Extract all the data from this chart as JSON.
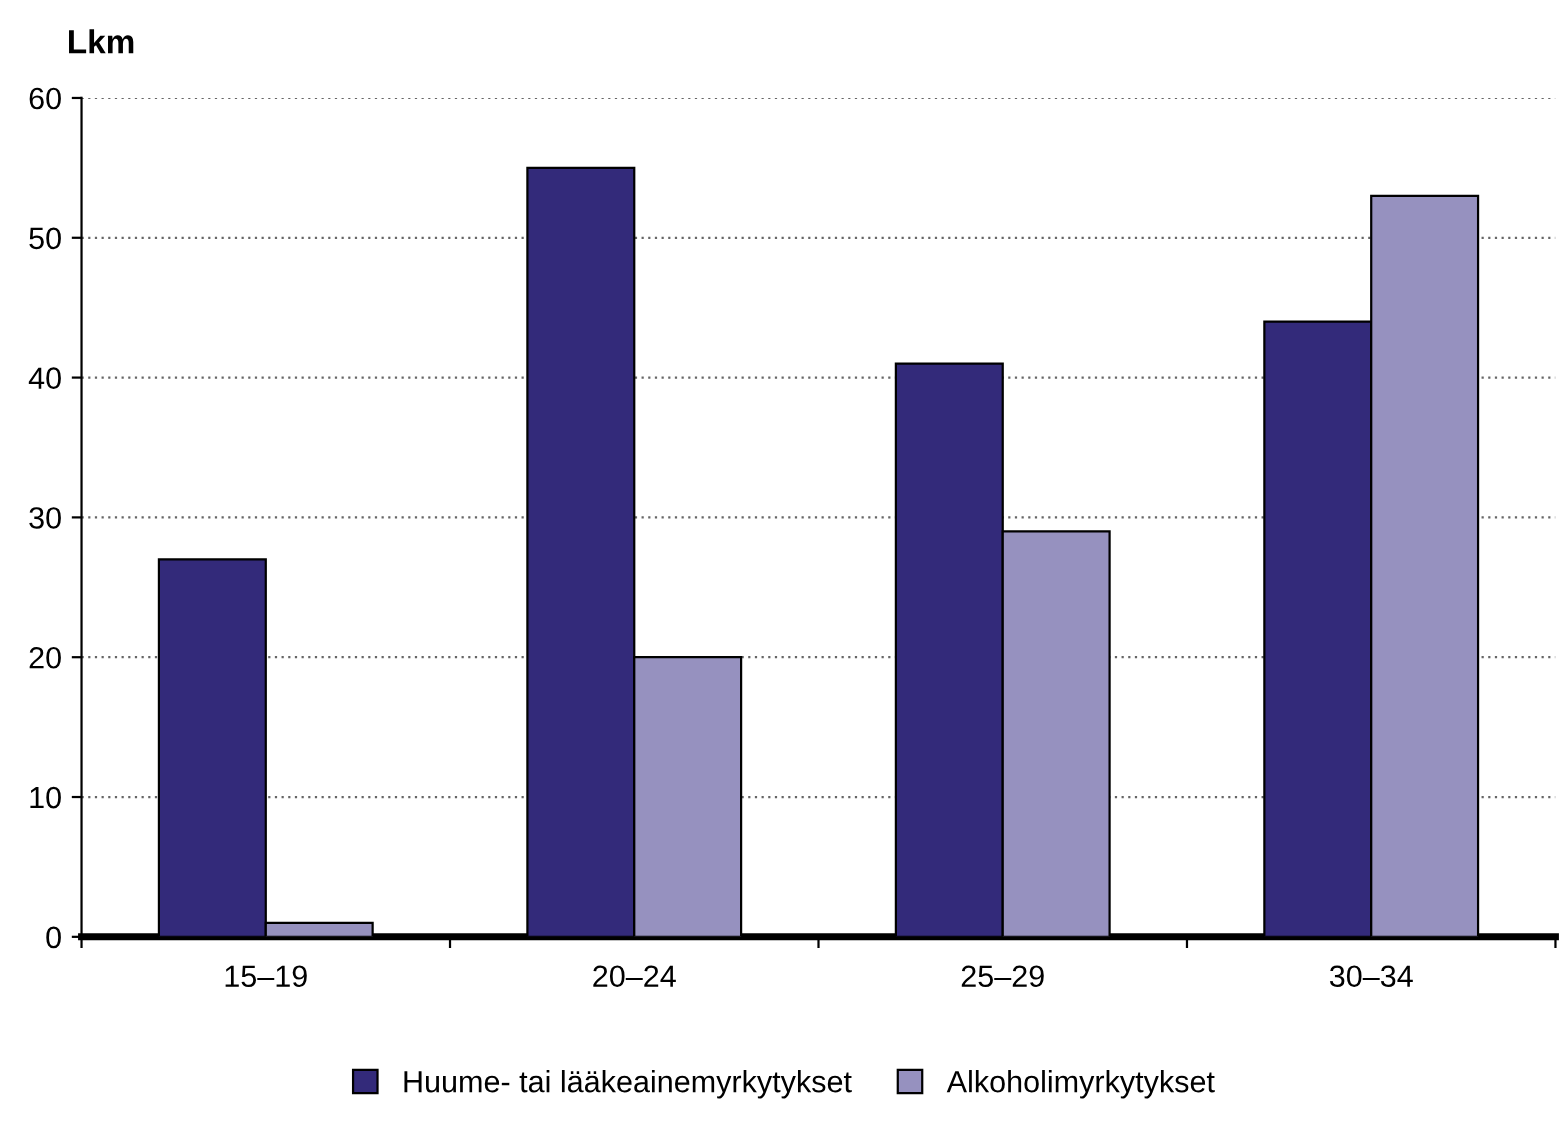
{
  "chart_data": {
    "type": "bar",
    "ylabel": "Lkm",
    "categories": [
      "15–19",
      "20–24",
      "25–29",
      "30–34"
    ],
    "series": [
      {
        "name": "Huume- tai lääkeainemyrkytykset",
        "color": "#332a7a",
        "values": [
          27,
          55,
          41,
          44
        ]
      },
      {
        "name": "Alkoholimyrkytykset",
        "color": "#9691bf",
        "values": [
          1,
          20,
          29,
          53
        ]
      }
    ],
    "ylim": [
      0,
      60
    ],
    "yticks": [
      0,
      10,
      20,
      30,
      40,
      50,
      60
    ],
    "grid": "y",
    "legend": "bottom"
  }
}
